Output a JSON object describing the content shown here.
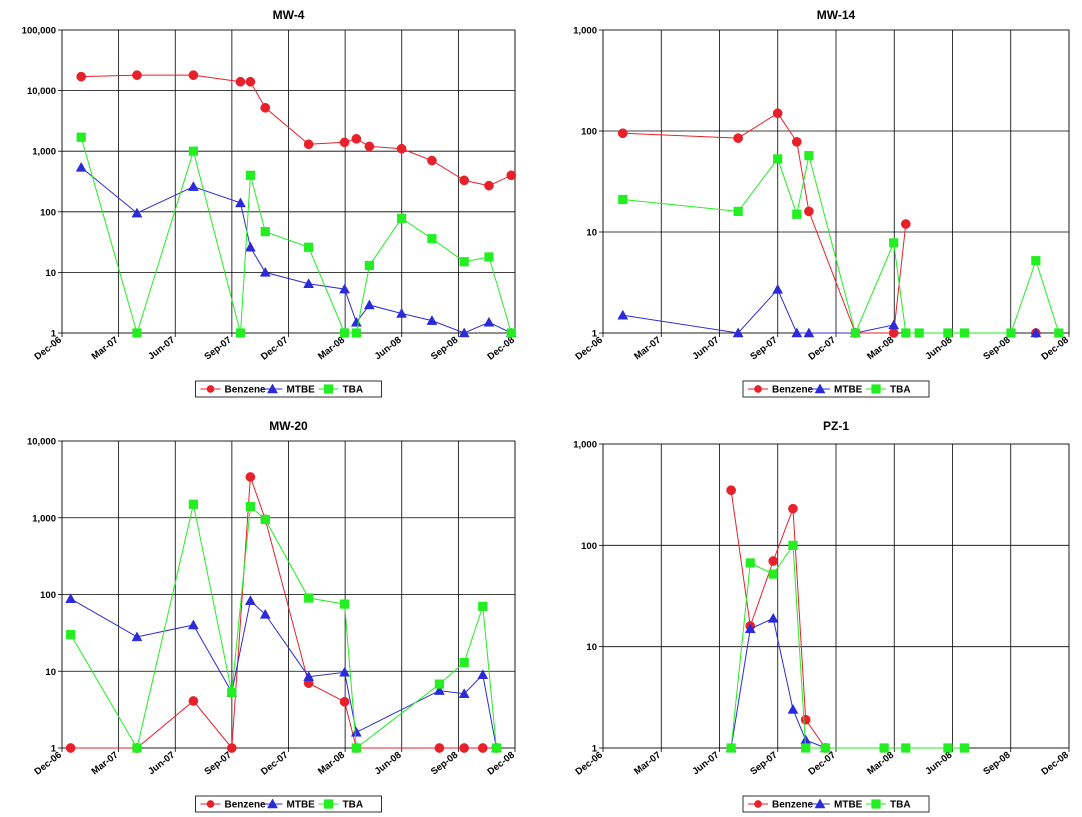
{
  "colors": {
    "Benzene": "#e8202a",
    "MTBE": "#2b2bd9",
    "TBA": "#22ee22"
  },
  "chart_data": [
    {
      "type": "line",
      "title": "MW-4",
      "yscale": "log",
      "ylim": [
        1,
        100000
      ],
      "ytick_labels": [
        "1",
        "10",
        "100",
        "1,000",
        "10,000",
        "100,000"
      ],
      "xlim": [
        "2006-12-01",
        "2008-12-01"
      ],
      "xtick_labels": [
        "Dec-06",
        "Mar-07",
        "Jun-07",
        "Sep-07",
        "Dec-07",
        "Mar-08",
        "Jun-08",
        "Sep-08",
        "Dec-08"
      ],
      "grid": true,
      "legend_position": "bottom",
      "series": [
        {
          "name": "Benzene",
          "marker": "circle",
          "x": [
            "2007-01-01",
            "2007-04-01",
            "2007-07-01",
            "2007-09-15",
            "2007-10-01",
            "2007-10-25",
            "2008-01-03",
            "2008-03-01",
            "2008-03-20",
            "2008-04-10",
            "2008-06-01",
            "2008-07-20",
            "2008-09-10",
            "2008-10-20",
            "2008-11-25"
          ],
          "y": [
            17000,
            18000,
            18000,
            14000,
            14000,
            5200,
            1300,
            1400,
            1600,
            1200,
            1100,
            700,
            330,
            270,
            400
          ]
        },
        {
          "name": "MTBE",
          "marker": "triangle",
          "x": [
            "2007-01-01",
            "2007-04-01",
            "2007-07-01",
            "2007-09-15",
            "2007-10-01",
            "2007-10-25",
            "2008-01-03",
            "2008-03-01",
            "2008-03-20",
            "2008-04-10",
            "2008-06-01",
            "2008-07-20",
            "2008-09-10",
            "2008-10-20",
            "2008-11-25"
          ],
          "y": [
            540,
            95,
            260,
            140,
            26,
            10,
            6.5,
            5.3,
            1.5,
            2.9,
            2.1,
            1.6,
            1,
            1.5,
            1
          ]
        },
        {
          "name": "TBA",
          "marker": "square",
          "x": [
            "2007-01-01",
            "2007-04-01",
            "2007-07-01",
            "2007-09-15",
            "2007-10-01",
            "2007-10-25",
            "2008-01-03",
            "2008-03-01",
            "2008-03-20",
            "2008-04-10",
            "2008-06-01",
            "2008-07-20",
            "2008-09-10",
            "2008-10-20",
            "2008-11-25"
          ],
          "y": [
            1700,
            1,
            1000,
            1,
            400,
            47,
            26,
            1,
            1,
            13,
            78,
            36,
            15,
            18,
            1
          ]
        }
      ]
    },
    {
      "type": "line",
      "title": "MW-14",
      "yscale": "log",
      "ylim": [
        1,
        1000
      ],
      "ytick_labels": [
        "1",
        "10",
        "100",
        "1,000"
      ],
      "xlim": [
        "2006-12-01",
        "2008-12-01"
      ],
      "xtick_labels": [
        "Dec-06",
        "Mar-07",
        "Jun-07",
        "Sep-07",
        "Dec-07",
        "Mar-08",
        "Jun-08",
        "Sep-08",
        "Dec-08"
      ],
      "grid": true,
      "legend_position": "bottom",
      "series": [
        {
          "name": "Benzene",
          "marker": "circle",
          "x": [
            "2007-01-01",
            "2007-07-01",
            "2007-09-01",
            "2007-10-01",
            "2007-10-20",
            "2008-01-01",
            "2008-03-01",
            "2008-03-20"
          ],
          "y": [
            95,
            85,
            150,
            78,
            16,
            1,
            1,
            12
          ]
        },
        {
          "name": "MTBE",
          "marker": "triangle",
          "x": [
            "2007-01-01",
            "2007-07-01",
            "2007-09-01",
            "2007-10-01",
            "2007-10-20",
            "2008-01-01",
            "2008-03-01"
          ],
          "y": [
            1.5,
            1,
            2.7,
            1,
            1,
            1,
            1.2
          ]
        },
        {
          "name": "TBA",
          "marker": "square",
          "x": [
            "2007-01-01",
            "2007-07-01",
            "2007-09-01",
            "2007-10-01",
            "2007-10-20",
            "2008-01-01",
            "2008-03-01",
            "2008-03-20",
            "2008-04-10",
            "2008-05-25",
            "2008-06-20",
            "2008-09-01",
            "2008-10-10",
            "2008-11-15"
          ],
          "y": [
            21,
            16,
            53,
            15,
            57,
            1,
            7.8,
            1,
            1,
            1,
            1,
            1,
            5.2,
            1
          ]
        }
      ],
      "extra_points": [
        {
          "series": "Benzene",
          "x": "2008-10-10",
          "y": 1
        },
        {
          "series": "MTBE",
          "x": "2008-10-10",
          "y": 1
        }
      ]
    },
    {
      "type": "line",
      "title": "MW-20",
      "yscale": "log",
      "ylim": [
        1,
        10000
      ],
      "ytick_labels": [
        "1",
        "10",
        "100",
        "1,000",
        "10,000"
      ],
      "xlim": [
        "2006-12-01",
        "2008-12-01"
      ],
      "xtick_labels": [
        "Dec-06",
        "Mar-07",
        "Jun-07",
        "Sep-07",
        "Dec-07",
        "Mar-08",
        "Jun-08",
        "Sep-08",
        "Dec-08"
      ],
      "grid": true,
      "legend_position": "bottom",
      "series": [
        {
          "name": "Benzene",
          "marker": "circle",
          "x": [
            "2006-12-15",
            "2007-04-01",
            "2007-07-01",
            "2007-09-01",
            "2007-10-01",
            "2007-10-25",
            "2008-01-03",
            "2008-03-01",
            "2008-03-20",
            "2008-08-01",
            "2008-09-10",
            "2008-10-10",
            "2008-11-01"
          ],
          "y": [
            1,
            1,
            4.1,
            1,
            3400,
            950,
            7,
            4,
            1,
            1,
            1,
            1,
            1
          ]
        },
        {
          "name": "MTBE",
          "marker": "triangle",
          "x": [
            "2006-12-15",
            "2007-04-01",
            "2007-07-01",
            "2007-09-01",
            "2007-10-01",
            "2007-10-25",
            "2008-01-03",
            "2008-03-01",
            "2008-03-20",
            "2008-08-01",
            "2008-09-10",
            "2008-10-10",
            "2008-11-01"
          ],
          "y": [
            88,
            28,
            40,
            5.3,
            83,
            55,
            8.5,
            9.7,
            1.6,
            5.6,
            5.1,
            9,
            1
          ]
        },
        {
          "name": "TBA",
          "marker": "square",
          "x": [
            "2006-12-15",
            "2007-04-01",
            "2007-07-01",
            "2007-09-01",
            "2007-10-01",
            "2007-10-25",
            "2008-01-03",
            "2008-03-01",
            "2008-03-20",
            "2008-08-01",
            "2008-09-10",
            "2008-10-10",
            "2008-11-01"
          ],
          "y": [
            30,
            1,
            1500,
            5.3,
            1400,
            950,
            90,
            75,
            1,
            6.8,
            13,
            70,
            1
          ]
        }
      ]
    },
    {
      "type": "line",
      "title": "PZ-1",
      "yscale": "log",
      "ylim": [
        1,
        1000
      ],
      "ytick_labels": [
        "1",
        "10",
        "100",
        "1,000"
      ],
      "xlim": [
        "2006-12-01",
        "2008-12-01"
      ],
      "xtick_labels": [
        "Dec-06",
        "Mar-07",
        "Jun-07",
        "Sep-07",
        "Dec-07",
        "Mar-08",
        "Jun-08",
        "Sep-08",
        "Dec-08"
      ],
      "grid": true,
      "legend_position": "bottom",
      "series": [
        {
          "name": "Benzene",
          "marker": "circle",
          "x": [
            "2007-06-20",
            "2007-07-20",
            "2007-08-25",
            "2007-09-25",
            "2007-10-15",
            "2007-11-15"
          ],
          "y": [
            350,
            16,
            70,
            230,
            1.9,
            1
          ]
        },
        {
          "name": "MTBE",
          "marker": "triangle",
          "x": [
            "2007-06-20",
            "2007-07-20",
            "2007-08-25",
            "2007-09-25",
            "2007-10-15",
            "2007-11-15"
          ],
          "y": [
            1,
            15,
            19,
            2.4,
            1.2,
            1
          ]
        },
        {
          "name": "TBA",
          "marker": "square",
          "x": [
            "2007-06-20",
            "2007-07-20",
            "2007-08-25",
            "2007-09-25",
            "2007-10-15",
            "2007-11-15",
            "2008-02-15",
            "2008-03-20",
            "2008-05-25",
            "2008-06-20"
          ],
          "y": [
            1,
            67,
            52,
            100,
            1,
            1,
            1,
            1,
            1,
            1
          ]
        }
      ]
    }
  ]
}
